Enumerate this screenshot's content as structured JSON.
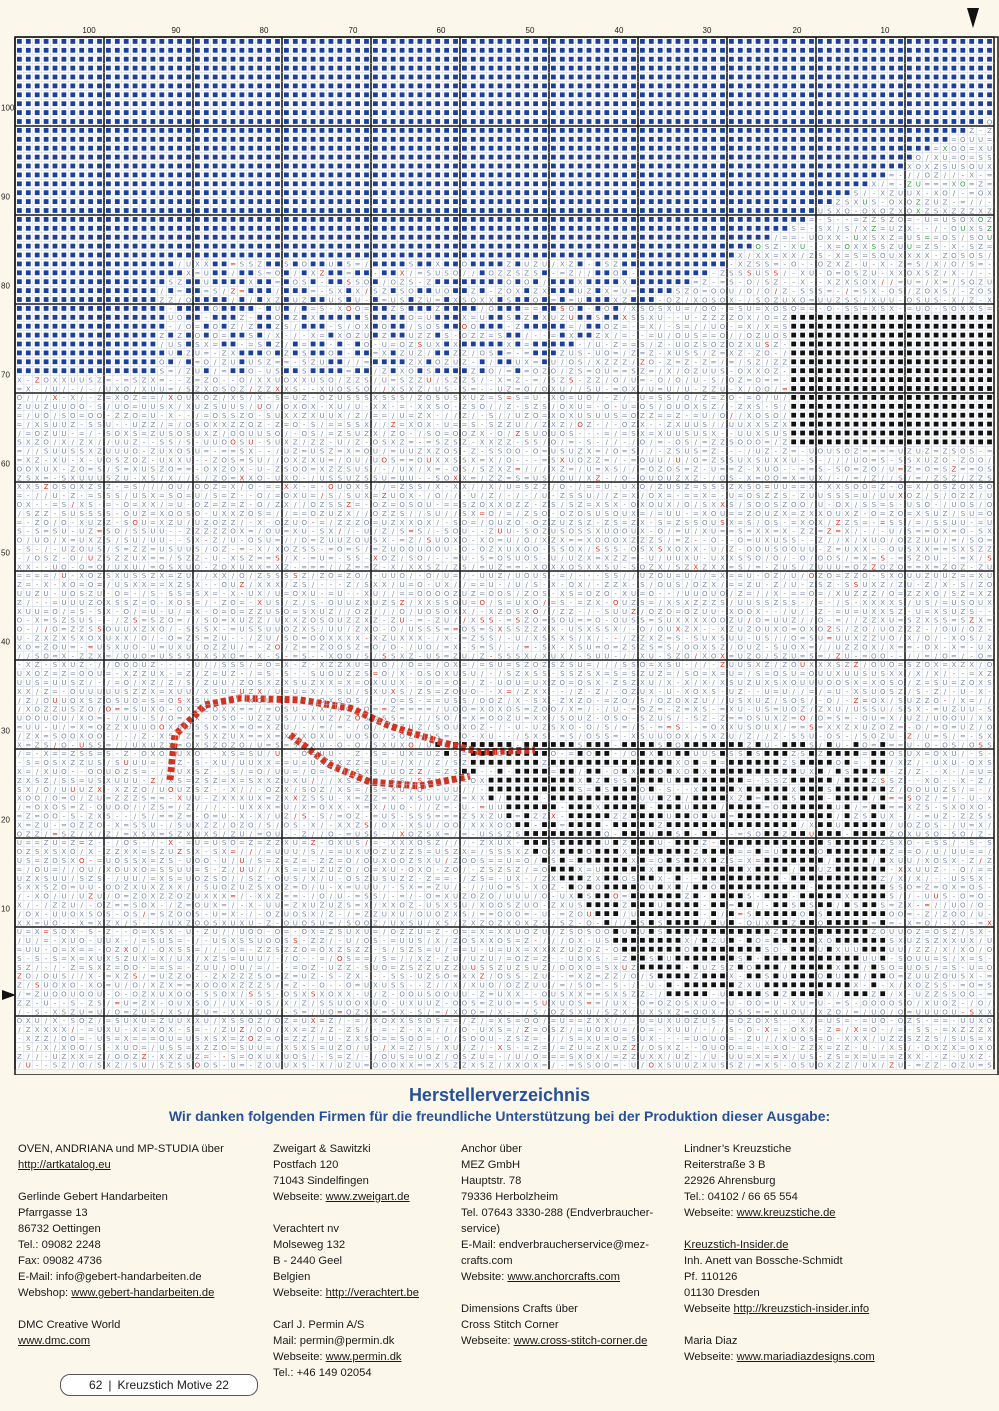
{
  "chart": {
    "column_numbers": [
      "100",
      "90",
      "80",
      "70",
      "60",
      "50",
      "40",
      "30",
      "20",
      "10"
    ],
    "row_numbers": [
      "100",
      "90",
      "80",
      "70",
      "60",
      "50",
      "40",
      "30",
      "20",
      "10"
    ],
    "colors": {
      "blue": "#1c3f9a",
      "green": "#2e9a3a",
      "red": "#d2321e",
      "black": "#111111",
      "grid_light": "#b9c3d6",
      "grid_heavy": "#1a1a1a"
    },
    "symbols": [
      "S",
      "U",
      "O",
      "X",
      "Z",
      "Y",
      "H",
      "/",
      "-",
      "=",
      "L",
      "N",
      "V",
      "▼",
      "■",
      "▲"
    ]
  },
  "directory": {
    "title": "Herstellerverzeichnis",
    "subtitle": "Wir danken folgenden Firmen für die freundliche  Unterstützung bei der Produktion dieser Ausgabe:",
    "col1": [
      {
        "text": "OVEN, ANDRIANA und MP-STUDIA über"
      },
      {
        "text": "http://artkatalog.eu",
        "link": true
      },
      {
        "gap": true
      },
      {
        "text": "Gerlinde Gebert Handarbeiten"
      },
      {
        "text": "Pfarrgasse 13"
      },
      {
        "text": "86732 Oettingen"
      },
      {
        "text": "Tel.: 09082 2248"
      },
      {
        "text": "Fax: 09082 4736"
      },
      {
        "text": "E-Mail: info@gebert-handarbeiten.de"
      },
      {
        "prefix": "Webshop: ",
        "text": "www.gebert-handarbeiten.de",
        "link": true
      },
      {
        "gap": true
      },
      {
        "text": "DMC Creative World"
      },
      {
        "text": "www.dmc.com",
        "link": true
      }
    ],
    "col2": [
      {
        "text": "Zweigart & Sawitzki"
      },
      {
        "text": "Postfach 120"
      },
      {
        "text": "71043 Sindelfingen"
      },
      {
        "prefix": "Webseite: ",
        "text": "www.zweigart.de",
        "link": true
      },
      {
        "gap": true
      },
      {
        "text": "Verachtert nv"
      },
      {
        "text": "Molseweg 132"
      },
      {
        "text": "B - 2440 Geel"
      },
      {
        "text": "Belgien"
      },
      {
        "prefix": "Webseite: ",
        "text": "http://verachtert.be",
        "link": true
      },
      {
        "gap": true
      },
      {
        "text": "Carl J. Permin A/S"
      },
      {
        "text": "Mail: permin@permin.dk"
      },
      {
        "prefix": "Webseite: ",
        "text": "www.permin.dk",
        "link": true
      },
      {
        "text": "Tel.: +46 149 02054"
      }
    ],
    "col3": [
      {
        "text": "Anchor über"
      },
      {
        "text": "MEZ GmbH"
      },
      {
        "text": "Hauptstr. 78"
      },
      {
        "text": "79336 Herbolzheim"
      },
      {
        "text": "Tel. 07643 3330-288 (Endverbraucher-"
      },
      {
        "text": "service)"
      },
      {
        "text": "E-Mail: endverbraucherservice@mez-"
      },
      {
        "text": "crafts.com"
      },
      {
        "prefix": "Website: ",
        "text": "www.anchorcrafts.com",
        "link": true
      },
      {
        "gap": true
      },
      {
        "text": "Dimensions Crafts über"
      },
      {
        "text": "Cross Stitch Corner"
      },
      {
        "prefix": "Webseite: ",
        "text": "www.cross-stitch-corner.de",
        "link": true
      }
    ],
    "col4": [
      {
        "text": "Lindner’s Kreuzstiche"
      },
      {
        "text": "Reiterstraße 3 B"
      },
      {
        "text": "22926 Ahrensburg"
      },
      {
        "text": "Tel.: 04102 / 66 65 554"
      },
      {
        "prefix": "Webseite: ",
        "text": "www.kreuzstiche.de",
        "link": true
      },
      {
        "gap": true
      },
      {
        "text": "Kreuzstich-Insider.de",
        "link": true
      },
      {
        "text": "Inh. Anett van Bossche-Schmidt"
      },
      {
        "text": "Pf. 110126"
      },
      {
        "text": "01130 Dresden"
      },
      {
        "prefix": "Webseite ",
        "text": "http://kreuzstich-insider.info",
        "link": true
      },
      {
        "gap": true
      },
      {
        "text": "Maria Diaz"
      },
      {
        "prefix": "Webseite: ",
        "text": "www.mariadiazdesigns.com",
        "link": true
      }
    ]
  },
  "footer": {
    "page_number": "62",
    "separator": "|",
    "magazine": "Kreuzstich Motive",
    "issue": "22"
  }
}
